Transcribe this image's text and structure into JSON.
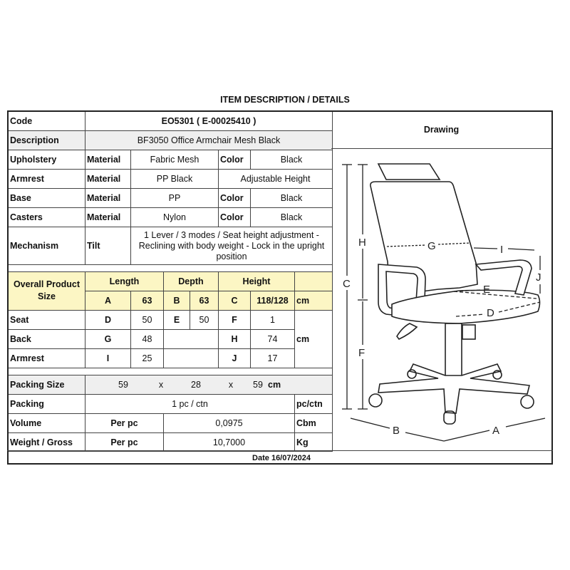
{
  "title": "ITEM DESCRIPTION / DETAILS",
  "code": {
    "label": "Code",
    "value": "EO5301   ( E-00025410 )"
  },
  "description": {
    "label": "Description",
    "value": "BF3050 Office Armchair Mesh Black"
  },
  "upholstery": {
    "label": "Upholstery",
    "material_label": "Material",
    "material": "Fabric Mesh",
    "color_label": "Color",
    "color": "Black"
  },
  "armrest": {
    "label": "Armrest",
    "material_label": "Material",
    "material": "PP Black",
    "feature": "Adjustable Height"
  },
  "base": {
    "label": "Base",
    "material_label": "Material",
    "material": "PP",
    "color_label": "Color",
    "color": "Black"
  },
  "casters": {
    "label": "Casters",
    "material_label": "Material",
    "material": "Nylon",
    "color_label": "Color",
    "color": "Black"
  },
  "mechanism": {
    "label": "Mechanism",
    "type": "Tilt",
    "value": "1 Lever / 3 modes / Seat height adjustment - Reclining with body weight - Lock in the upright position"
  },
  "size": {
    "label": "Overall Product Size",
    "length": "Length",
    "depth": "Depth",
    "height": "Height",
    "A": "A",
    "A_val": "63",
    "B": "B",
    "B_val": "63",
    "C": "C",
    "C_val": "118/128",
    "unit": "cm"
  },
  "seat": {
    "label": "Seat",
    "D": "D",
    "D_val": "50",
    "E": "E",
    "E_val": "50",
    "F": "F",
    "F_val": "1"
  },
  "back": {
    "label": "Back",
    "G": "G",
    "G_val": "48",
    "H": "H",
    "H_val": "74"
  },
  "armrest_dims": {
    "label": "Armrest",
    "I": "I",
    "I_val": "25",
    "J": "J",
    "J_val": "17"
  },
  "dims_unit": "cm",
  "packing_size": {
    "label": "Packing Size",
    "l": "59",
    "w": "28",
    "h": "59",
    "x": "x",
    "unit": "cm"
  },
  "packing": {
    "label": "Packing",
    "value": "1 pc / ctn",
    "unit": "pc/ctn"
  },
  "volume": {
    "label": "Volume",
    "per": "Per pc",
    "value": "0,0975",
    "unit": "Cbm"
  },
  "weight": {
    "label": "Weight / Gross",
    "per": "Per pc",
    "value": "10,7000",
    "unit": "Kg"
  },
  "drawing": {
    "label": "Drawing",
    "letters": {
      "A": "A",
      "B": "B",
      "C": "C",
      "D": "D",
      "E": "E",
      "F": "F",
      "G": "G",
      "H": "H",
      "I": "I",
      "J": "J"
    }
  },
  "date": "Date 16/07/2024"
}
